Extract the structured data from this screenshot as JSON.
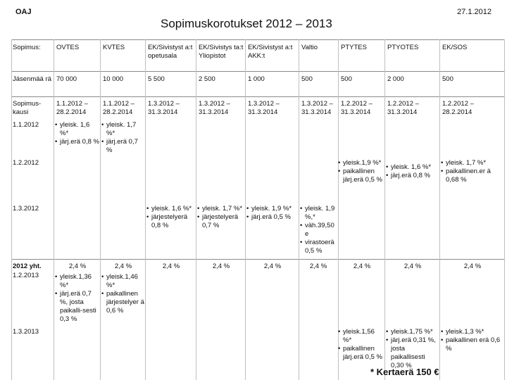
{
  "header": {
    "org": "OAJ",
    "date": "27.1.2012",
    "title": "Sopimuskorotukset 2012 – 2013"
  },
  "columns": [
    "Sopimus:",
    "OVTES",
    "KVTES",
    "EK/Sivistyst a:t opetusala",
    "EK/Sivistys ta:t Yliopistot",
    "EK/Sivistyst a:t AKK:t",
    "Valtio",
    "PTYTES",
    "PTYOTES",
    "EK/SOS"
  ],
  "rows": {
    "jasenmaara": {
      "label": "Jäsenmää rä",
      "values": [
        "70 000",
        "10 000",
        "5 500",
        "2 500",
        "1 000",
        "500",
        "500",
        "2 000",
        "500"
      ]
    },
    "kausi": {
      "label": "Sopimus-kausi",
      "values": [
        "1.1.2012 – 28.2.2014",
        "1.1.2012 – 28.2.2014",
        "1.3.2012 – 31.3.2014",
        "1.3.2012 – 31.3.2014",
        "1.3.2012 – 31.3.2014",
        "1.3.2012 – 31.3.2014",
        "1.2.2012 – 31.3.2014",
        "1.2.2012 – 31.3.2014",
        "1.2.2012 – 28.2.2014"
      ]
    },
    "d1": {
      "label": "1.1.2012"
    },
    "d2": {
      "label": "1.2.2012"
    },
    "d3": {
      "label": "1.3.2012"
    },
    "yht": {
      "label1": "2012 yht.",
      "label2": "1.2.2013",
      "values": [
        "2,4 %",
        "2,4 %",
        "2,4 %",
        "2,4 %",
        "2,4 %",
        "2,4 %",
        "2,4 %",
        "2,4 %",
        "2,4 %"
      ]
    },
    "d5": {
      "label": "1.3.2013"
    }
  },
  "bullets": {
    "ovtes_2012": [
      "yleisk. 1,6 %*",
      "järj.erä 0,8 %"
    ],
    "kvtes_2012": [
      "yleisk. 1,7 %*",
      "järj.erä 0,7 %"
    ],
    "ptytes_feb": [
      "yleisk.1,9 %*",
      "paikallinen järj.erä 0,5 %"
    ],
    "ptyotes_feb": [
      "yleisk. 1,6 %*",
      "järj.erä 0,8 %"
    ],
    "eksos_feb": [
      "yleisk. 1,7 %*",
      "paikallinen.er ä 0,68 %"
    ],
    "opetusala_mar": [
      "yleisk. 1,6 %*",
      "järjestelyerä 0,8 %"
    ],
    "yliopistot_mar": [
      "yleisk. 1,7 %*",
      "järjestelyerä 0,7 %"
    ],
    "akk_mar": [
      "yleisk. 1,9 %*",
      "järj.erä 0,5 %"
    ],
    "valtio_mar": [
      "yleisk. 1,9 %,*",
      "väh.39,50 e",
      "virastoerä 0,5 %"
    ],
    "ovtes_2013": [
      "yleisk.1,36 %*",
      "järj.erä 0,7 %, josta paikalli-sesti 0,3 %"
    ],
    "kvtes_2013": [
      "yleisk.1,46 %*",
      "paikallinen järjestelyer ä 0,6 %"
    ],
    "ptytes_2013": [
      "yleisk.1,56 %*",
      "paikallinen järj.erä 0,5 %"
    ],
    "ptyotes_2013": [
      "yleisk.1,75 %*",
      "järj.erä 0,31 %, josta paikallisesti 0,30 %"
    ],
    "eksos_2013": [
      "yleisk.1,3 %*",
      "paikallinen erä 0,6 %"
    ]
  },
  "footnote": "* Kertaerä 150 €"
}
